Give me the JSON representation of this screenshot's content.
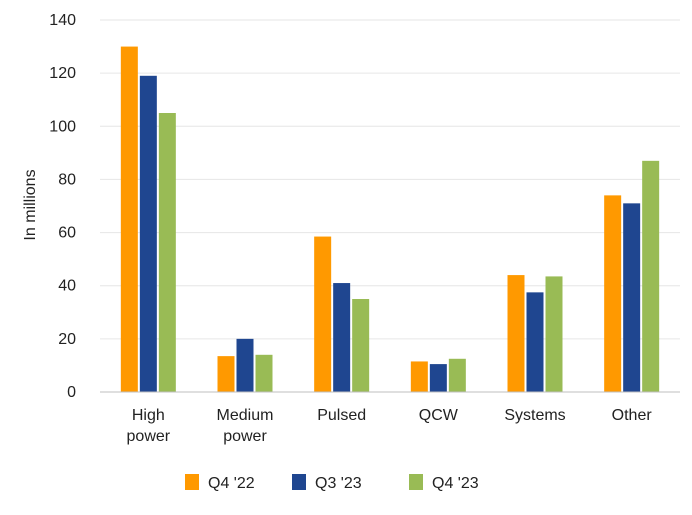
{
  "chart_data": {
    "type": "bar",
    "title": "",
    "xlabel": "",
    "ylabel": "In millions",
    "ylim": [
      0,
      140
    ],
    "yticks": [
      0,
      20,
      40,
      60,
      80,
      100,
      120,
      140
    ],
    "grid": true,
    "legend_position": "bottom",
    "categories": [
      [
        "High",
        "power"
      ],
      [
        "Medium",
        "power"
      ],
      [
        "Pulsed"
      ],
      [
        "QCW"
      ],
      [
        "Systems"
      ],
      [
        "Other"
      ]
    ],
    "series": [
      {
        "name": "Q4 '22",
        "color": "#ff9900",
        "values": [
          130,
          13.5,
          58.5,
          11.5,
          44,
          74
        ]
      },
      {
        "name": "Q3 '23",
        "color": "#1f4690",
        "values": [
          119,
          20,
          41,
          10.5,
          37.5,
          71
        ]
      },
      {
        "name": "Q4 '23",
        "color": "#99bb55",
        "values": [
          105,
          14,
          35,
          12.5,
          43.5,
          87
        ]
      }
    ]
  }
}
